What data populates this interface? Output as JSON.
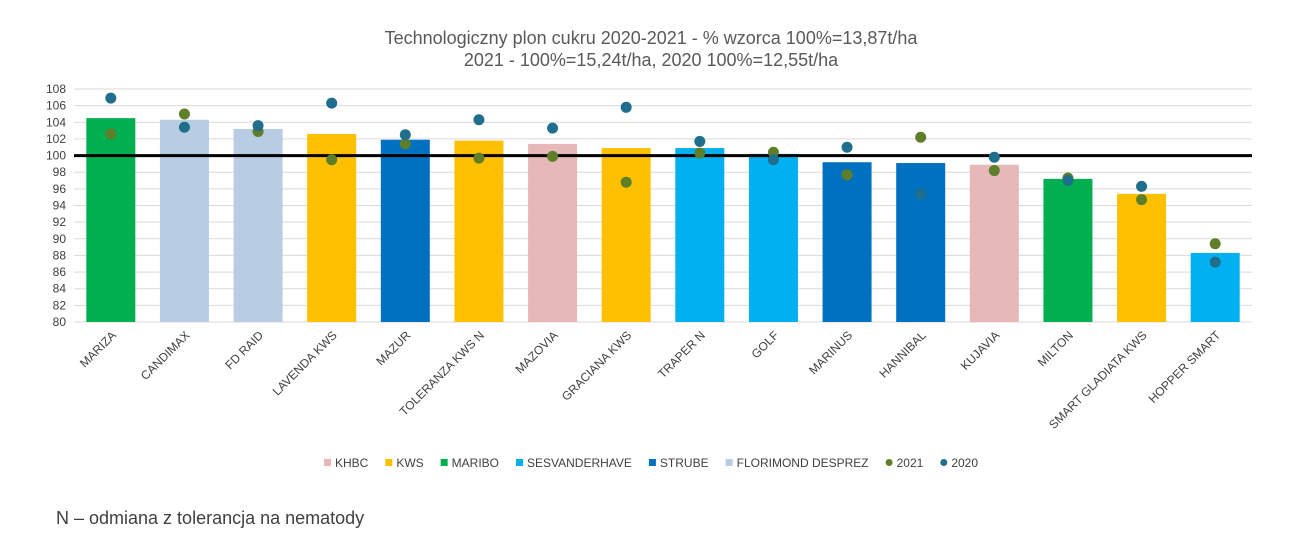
{
  "chart_data": {
    "type": "bar",
    "title": "Technologiczny plon cukru 2020-2021 - % wzorca 100%=13,87t/ha",
    "subtitle": "2021 - 100%=15,24t/ha, 2020 100%=12,55t/ha",
    "xlabel": "",
    "ylabel": "",
    "ylim": [
      80,
      108
    ],
    "yticks": [
      80,
      82,
      84,
      86,
      88,
      90,
      92,
      94,
      96,
      98,
      100,
      102,
      104,
      106,
      108
    ],
    "grid": true,
    "legend_position": "bottom",
    "reference_line": 100,
    "categories": [
      "MARIZA",
      "CANDIMAX",
      "FD RAID",
      "LAVENDA KWS",
      "MAZUR",
      "TOLERANZA KWS N",
      "MAZOVIA",
      "GRACIANA KWS",
      "TRAPER N",
      "GOLF",
      "MARINUS",
      "HANNIBAL",
      "KUJAVIA",
      "MILTON",
      "SMART GLADIATA KWS",
      "HOPPER SMART"
    ],
    "bar_values": [
      104.5,
      104.3,
      103.2,
      102.6,
      101.9,
      101.8,
      101.4,
      100.9,
      100.9,
      100.2,
      99.2,
      99.1,
      98.9,
      97.2,
      95.4,
      88.3
    ],
    "bar_groups": [
      "MARIBO",
      "FLORIMOND DESPREZ",
      "FLORIMOND DESPREZ",
      "KWS",
      "STRUBE",
      "KWS",
      "KHBC",
      "KWS",
      "SESVANDERHAVE",
      "SESVANDERHAVE",
      "STRUBE",
      "STRUBE",
      "KHBC",
      "MARIBO",
      "KWS",
      "SESVANDERHAVE"
    ],
    "groups": [
      {
        "name": "KHBC",
        "color": "#E6B8B7"
      },
      {
        "name": "KWS",
        "color": "#FFC000"
      },
      {
        "name": "MARIBO",
        "color": "#00B050"
      },
      {
        "name": "SESVANDERHAVE",
        "color": "#00B0F0"
      },
      {
        "name": "STRUBE",
        "color": "#0070C0"
      },
      {
        "name": "FLORIMOND DESPREZ",
        "color": "#B8CCE4"
      }
    ],
    "series": [
      {
        "name": "2021",
        "color": "#5E7E2A",
        "values": [
          102.6,
          105.0,
          102.9,
          99.5,
          101.4,
          99.7,
          99.9,
          96.8,
          100.3,
          100.4,
          97.7,
          102.2,
          98.2,
          97.3,
          94.7,
          89.4
        ]
      },
      {
        "name": "2020",
        "color": "#1F6E8C",
        "values": [
          106.9,
          103.4,
          103.6,
          106.3,
          102.5,
          104.3,
          103.3,
          105.8,
          101.7,
          99.5,
          101.0,
          95.4,
          99.8,
          97.0,
          96.3,
          87.2
        ]
      }
    ]
  },
  "footnote": "N – odmiana z tolerancja na nematody"
}
